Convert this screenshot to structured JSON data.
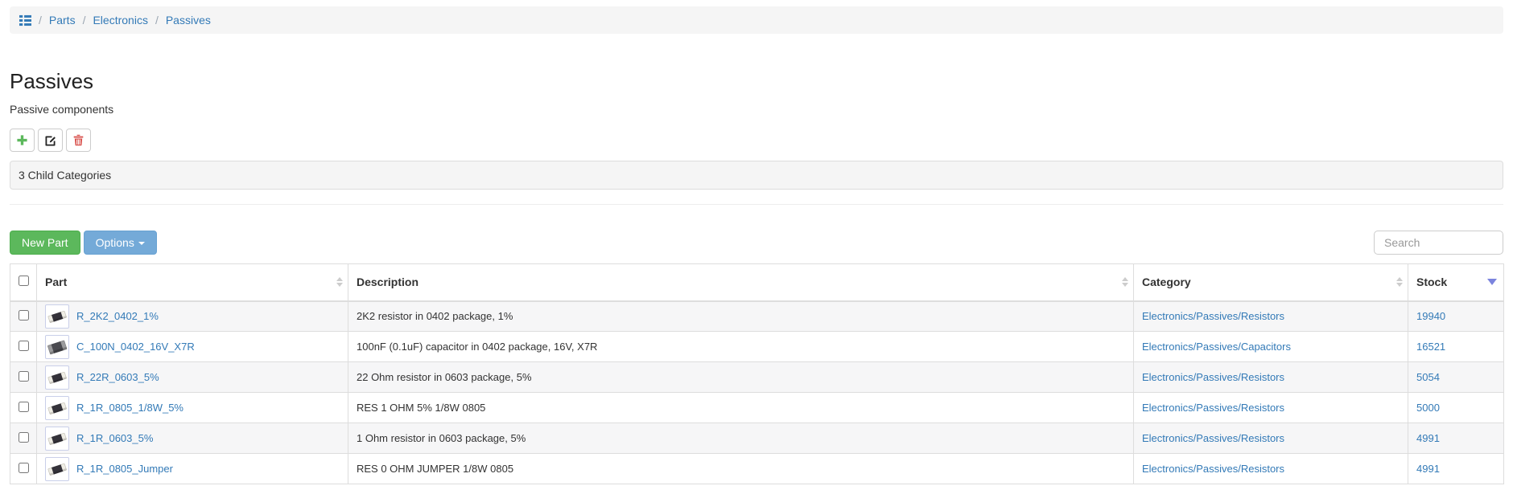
{
  "breadcrumb": {
    "home_icon": "list-icon",
    "separator": "/",
    "items": [
      "Parts",
      "Electronics",
      "Passives"
    ]
  },
  "header": {
    "title": "Passives",
    "subtitle": "Passive components"
  },
  "actions": {
    "add_icon": "plus-icon",
    "edit_icon": "edit-icon",
    "delete_icon": "trash-icon"
  },
  "category_panel": {
    "label": "3 Child Categories"
  },
  "toolbar": {
    "new_part_label": "New Part",
    "options_label": "Options",
    "search_placeholder": "Search"
  },
  "table": {
    "columns": [
      "Part",
      "Description",
      "Category",
      "Stock"
    ],
    "sort": {
      "column": "Stock",
      "direction": "desc"
    },
    "rows": [
      {
        "thumb": "resistor",
        "part": "R_2K2_0402_1%",
        "description": "2K2 resistor in 0402 package, 1%",
        "category": "Electronics/Passives/Resistors",
        "stock": "19940"
      },
      {
        "thumb": "capacitor",
        "part": "C_100N_0402_16V_X7R",
        "description": "100nF (0.1uF) capacitor in 0402 package, 16V, X7R",
        "category": "Electronics/Passives/Capacitors",
        "stock": "16521"
      },
      {
        "thumb": "resistor",
        "part": "R_22R_0603_5%",
        "description": "22 Ohm resistor in 0603 package, 5%",
        "category": "Electronics/Passives/Resistors",
        "stock": "5054"
      },
      {
        "thumb": "resistor",
        "part": "R_1R_0805_1/8W_5%",
        "description": "RES 1 OHM 5% 1/8W 0805",
        "category": "Electronics/Passives/Resistors",
        "stock": "5000"
      },
      {
        "thumb": "resistor",
        "part": "R_1R_0603_5%",
        "description": "1 Ohm resistor in 0603 package, 5%",
        "category": "Electronics/Passives/Resistors",
        "stock": "4991"
      },
      {
        "thumb": "resistor",
        "part": "R_1R_0805_Jumper",
        "description": "RES 0 OHM JUMPER 1/8W 0805",
        "category": "Electronics/Passives/Resistors",
        "stock": "4991"
      }
    ]
  },
  "colors": {
    "link": "#337ab7",
    "new_part_button": "#5cb85c",
    "options_button": "#74aad8",
    "delete_icon": "#d9534f",
    "add_icon": "#5cb85c",
    "sort_active_caret": "#7b84de",
    "panel_background": "#f5f5f5"
  }
}
